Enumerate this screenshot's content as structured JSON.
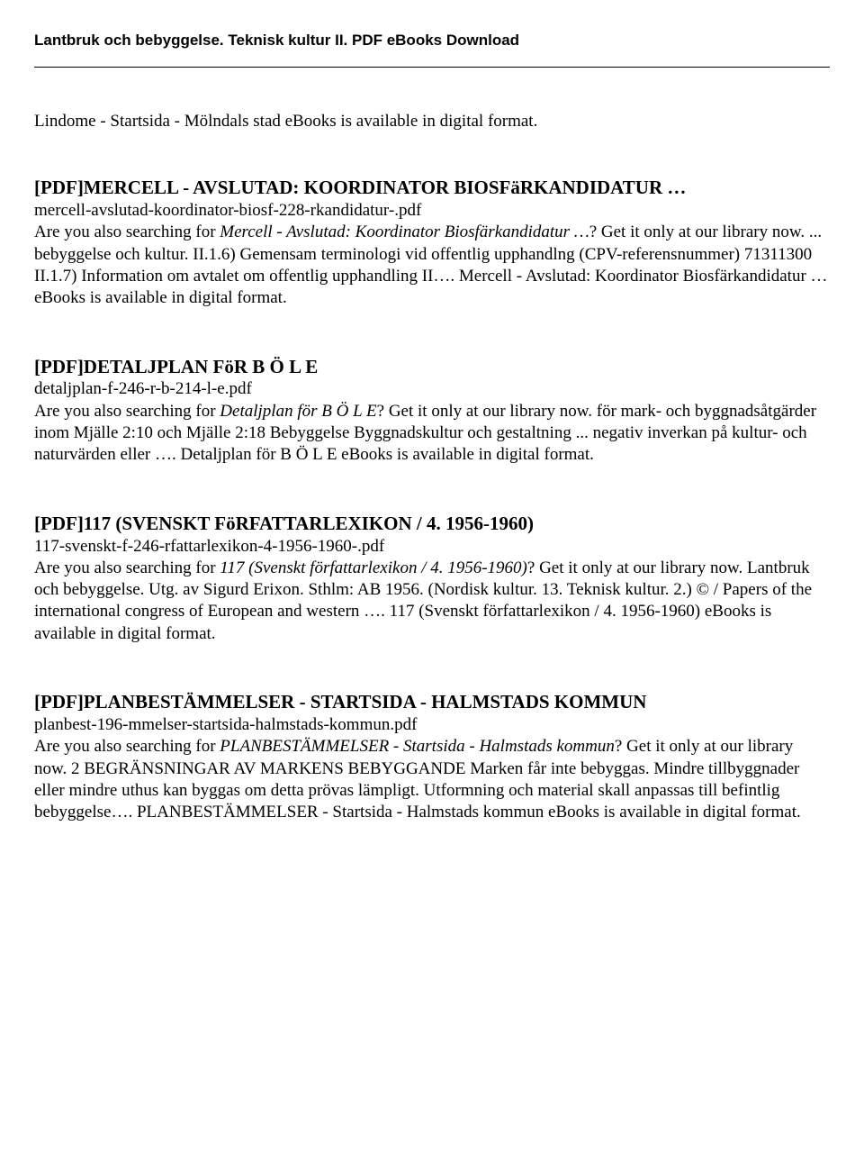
{
  "header": "Lantbruk och bebyggelse. Teknisk kultur II. PDF eBooks Download",
  "intro": "Lindome - Startsida - Mölndals stad eBooks is available in digital format.",
  "entries": [
    {
      "title": "[PDF]MERCELL - AVSLUTAD: KOORDINATOR BIOSFäRKANDIDATUR …",
      "file": "mercell-avslutad-koordinator-biosf-228-rkandidatur-.pdf",
      "body_pre": "Are you also searching for ",
      "body_italic": "Mercell - Avslutad: Koordinator Biosfärkandidatur …",
      "body_post": "? Get it only at our library now. ... bebyggelse och kultur. II.1.6) Gemensam terminologi vid offentlig upphandlng (CPV-referensnummer) 71311300 II.1.7) Information om avtalet om offentlig upphandling II…. Mercell - Avslutad: Koordinator Biosfärkandidatur … eBooks is available in digital format."
    },
    {
      "title": "[PDF]DETALJPLAN FöR B Ö L E",
      "file": "detaljplan-f-246-r-b-214-l-e.pdf",
      "body_pre": "Are you also searching for ",
      "body_italic": "Detaljplan för B Ö L E",
      "body_post": "? Get it only at our library now. för mark- och byggnadsåtgärder inom Mjälle 2:10 och Mjälle 2:18 Bebyggelse Byggnadskultur och gestaltning ... negativ inverkan på kultur- och naturvärden eller …. Detaljplan för B Ö L E eBooks is available in digital format."
    },
    {
      "title": "[PDF]117 (SVENSKT FöRFATTARLEXIKON / 4. 1956-1960)",
      "file": "117-svenskt-f-246-rfattarlexikon-4-1956-1960-.pdf",
      "body_pre": "Are you also searching for ",
      "body_italic": "117 (Svenskt författarlexikon / 4. 1956-1960)",
      "body_post": "? Get it only at our library now. Lantbruk och bebyggelse. Utg. av Sigurd Erixon. Sthlm: AB 1956. (Nordisk kultur. 13. Teknisk kultur. 2.) © / Papers of the international congress of European and western …. 117 (Svenskt författarlexikon / 4. 1956-1960) eBooks is available in digital format."
    },
    {
      "title": "[PDF]PLANBESTÄMMELSER - STARTSIDA - HALMSTADS KOMMUN",
      "file": "planbest-196-mmelser-startsida-halmstads-kommun.pdf",
      "body_pre": "Are you also searching for ",
      "body_italic": "PLANBESTÄMMELSER - Startsida - Halmstads kommun",
      "body_post": "? Get it only at our library now. 2 BEGRÄNSNINGAR AV MARKENS BEBYGGANDE Marken får inte bebyggas. Mindre tillbyggnader eller mindre uthus kan byggas om detta prövas lämpligt. Utformning och material skall anpassas till befintlig bebyggelse…. PLANBESTÄMMELSER - Startsida - Halmstads kommun eBooks is available in digital format."
    }
  ]
}
